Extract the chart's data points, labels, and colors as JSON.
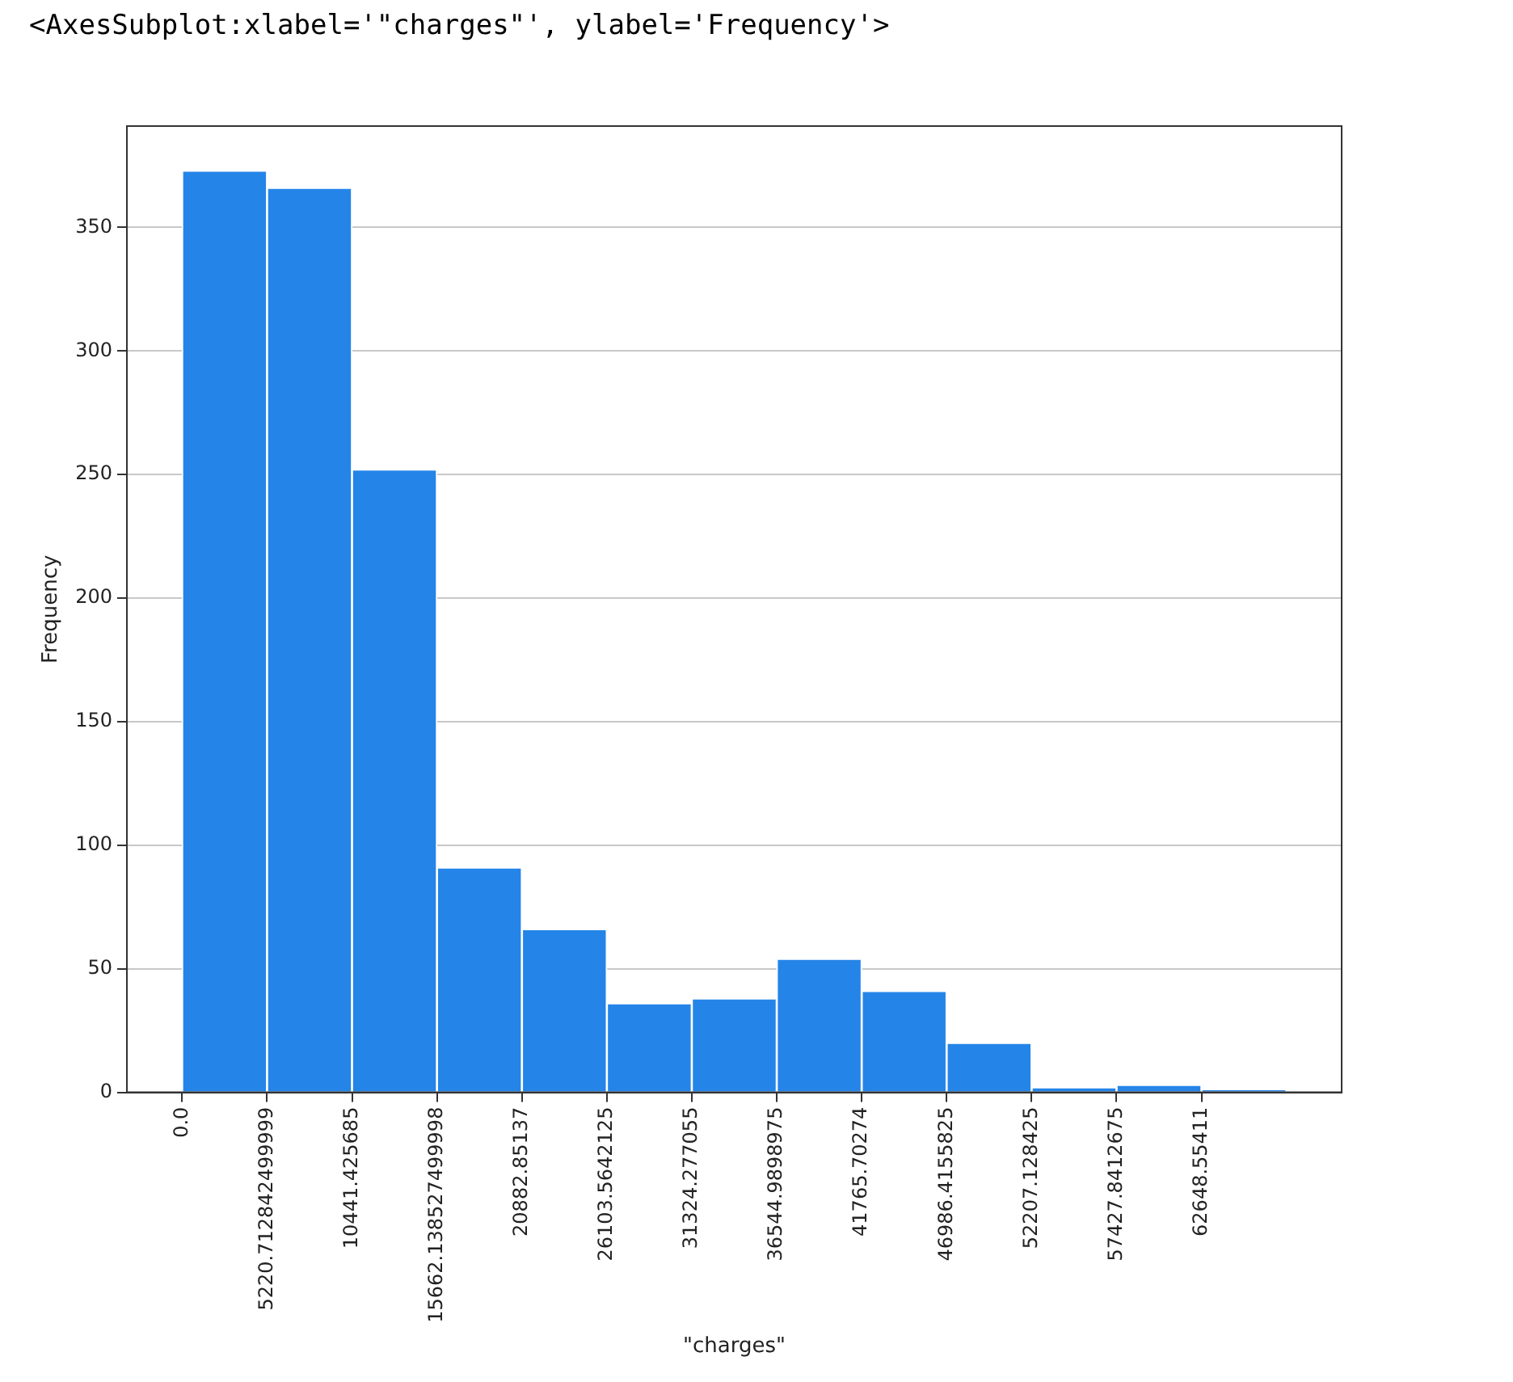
{
  "chart_data": {
    "type": "histogram",
    "annotations": [
      "<AxesSubplot:xlabel='\"charges\"', ylabel='Frequency'>"
    ],
    "xlabel": "\"charges\"",
    "ylabel": "Frequency",
    "bins": [
      0,
      5220.712842499999,
      10441.425685,
      15662.138527499998,
      20882.85137,
      26103.5642125,
      31324.277055,
      36544.9898975,
      41765.70274,
      46986.4155825,
      52207.128425,
      57427.8412675,
      62648.55411,
      67869.2669525
    ],
    "values": [
      373,
      366,
      252,
      91,
      66,
      36,
      38,
      54,
      41,
      20,
      2,
      3,
      1
    ],
    "color": "#2484e8",
    "xlim": [
      -3393,
      71263
    ],
    "xticks": [
      {
        "value": 0,
        "label": "0.0"
      },
      {
        "value": 5220.712842499999,
        "label": "5220.712842499999"
      },
      {
        "value": 10441.425685,
        "label": "10441.425685"
      },
      {
        "value": 15662.138527499998,
        "label": "15662.138527499998"
      },
      {
        "value": 20882.85137,
        "label": "20882.85137"
      },
      {
        "value": 26103.5642125,
        "label": "26103.5642125"
      },
      {
        "value": 31324.277055,
        "label": "31324.277055"
      },
      {
        "value": 36544.9898975,
        "label": "36544.9898975"
      },
      {
        "value": 41765.70274,
        "label": "41765.70274"
      },
      {
        "value": 46986.4155825,
        "label": "46986.4155825"
      },
      {
        "value": 52207.128425,
        "label": "52207.128425"
      },
      {
        "value": 57427.8412675,
        "label": "57427.8412675"
      },
      {
        "value": 62648.55411,
        "label": "62648.55411"
      }
    ],
    "ylim": [
      0,
      391
    ],
    "yticks": [
      0,
      50,
      100,
      150,
      200,
      250,
      300,
      350
    ],
    "grid": "y"
  }
}
